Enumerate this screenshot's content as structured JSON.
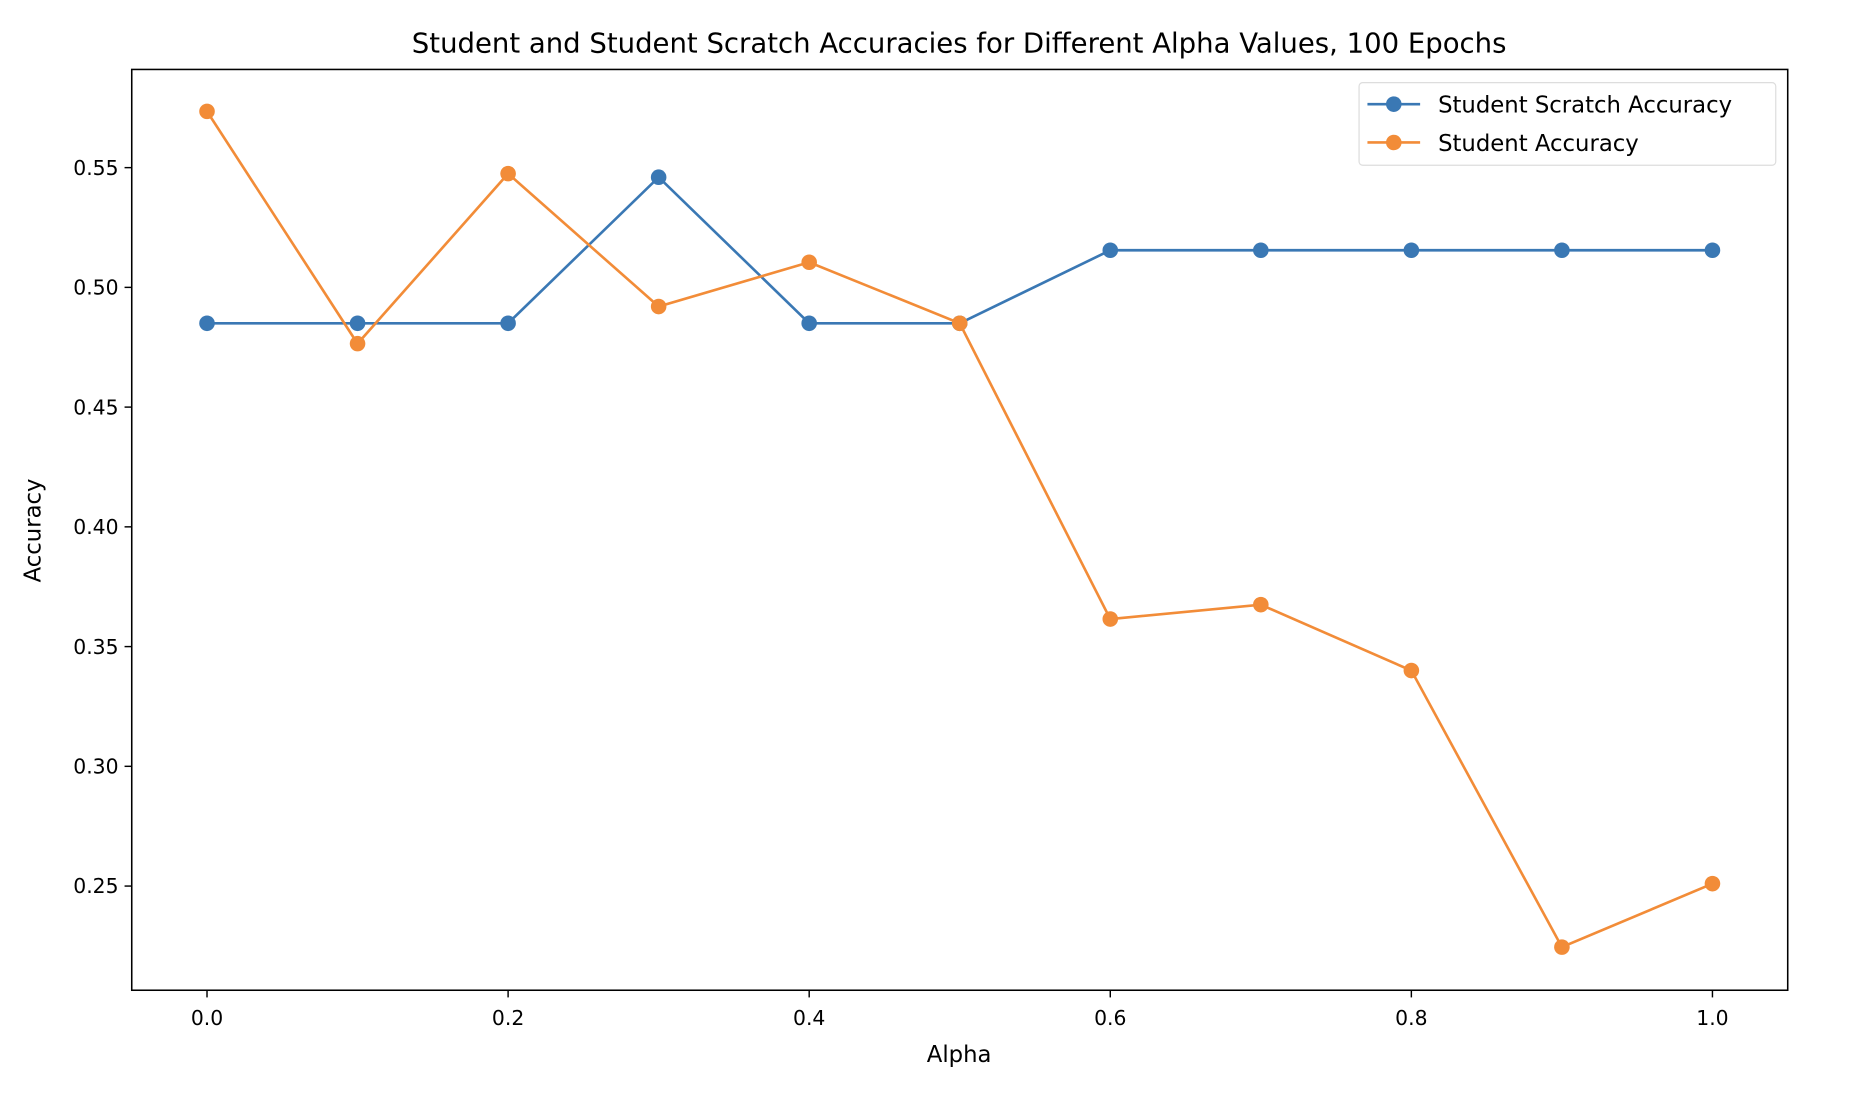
{
  "chart_data": {
    "type": "line",
    "title": "Student and Student Scratch Accuracies for Different Alpha Values, 100 Epochs",
    "xlabel": "Alpha",
    "ylabel": "Accuracy",
    "x": [
      0.0,
      0.1,
      0.2,
      0.3,
      0.4,
      0.5,
      0.6,
      0.7,
      0.8,
      0.9,
      1.0
    ],
    "xlim": [
      -0.05,
      1.05
    ],
    "ylim": [
      0.2065,
      0.591
    ],
    "xticks": [
      0.0,
      0.2,
      0.4,
      0.6,
      0.8,
      1.0
    ],
    "xtick_labels": [
      "0.0",
      "0.2",
      "0.4",
      "0.6",
      "0.8",
      "1.0"
    ],
    "yticks": [
      0.25,
      0.3,
      0.35,
      0.4,
      0.45,
      0.5,
      0.55
    ],
    "ytick_labels": [
      "0.25",
      "0.30",
      "0.35",
      "0.40",
      "0.45",
      "0.50",
      "0.55"
    ],
    "grid": false,
    "legend_position": "top-right",
    "series": [
      {
        "name": "Student Scratch Accuracy",
        "color": "#3a78b4",
        "marker": "circle",
        "values": [
          0.485,
          0.485,
          0.485,
          0.546,
          0.485,
          0.485,
          0.5155,
          0.5155,
          0.5155,
          0.5155,
          0.5155
        ]
      },
      {
        "name": "Student Accuracy",
        "color": "#f28c38",
        "marker": "circle",
        "values": [
          0.5735,
          0.4765,
          0.5475,
          0.492,
          0.5105,
          0.485,
          0.3615,
          0.3675,
          0.34,
          0.2245,
          0.251
        ]
      }
    ]
  }
}
